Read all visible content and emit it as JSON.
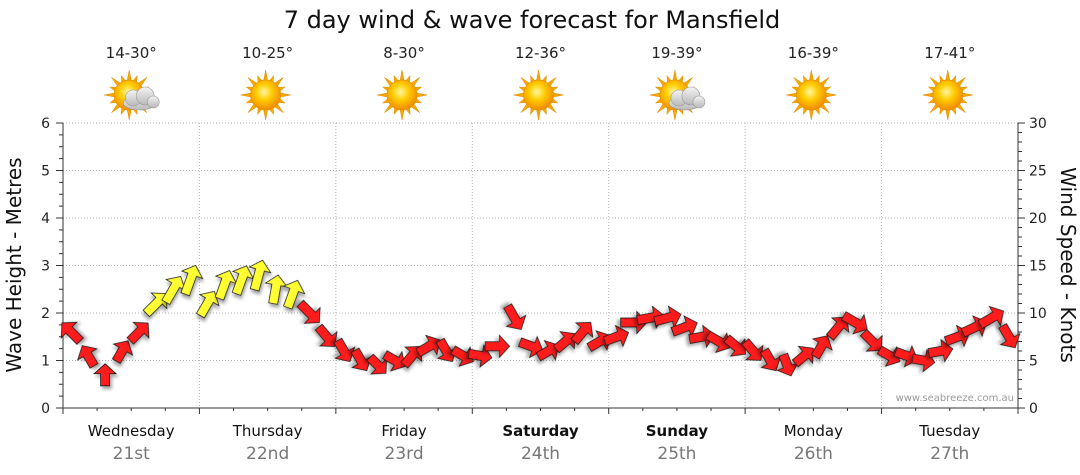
{
  "chart_data": {
    "type": "line",
    "title": "7 day wind & wave forecast for Mansfield",
    "ylabel_left": "Wave Height - Metres",
    "ylabel_right": "Wind Speed - Knots",
    "ylim_left": [
      0,
      6
    ],
    "ylim_right": [
      0,
      30
    ],
    "yticks_left": [
      "0",
      "1",
      "2",
      "3",
      "4",
      "5",
      "6"
    ],
    "yticks_right": [
      "0",
      "5",
      "10",
      "15",
      "20",
      "25",
      "30"
    ],
    "days": [
      {
        "name": "Wednesday",
        "date": "21st",
        "temp": "14-30°",
        "weather": "partly-cloudy-icon",
        "weekend": false
      },
      {
        "name": "Thursday",
        "date": "22nd",
        "temp": "10-25°",
        "weather": "sunny-icon",
        "weekend": false
      },
      {
        "name": "Friday",
        "date": "23rd",
        "temp": "8-30°",
        "weather": "sunny-icon",
        "weekend": false
      },
      {
        "name": "Saturday",
        "date": "24th",
        "temp": "12-36°",
        "weather": "sunny-icon",
        "weekend": true
      },
      {
        "name": "Sunday",
        "date": "25th",
        "temp": "19-39°",
        "weather": "partly-cloudy-icon",
        "weekend": true
      },
      {
        "name": "Monday",
        "date": "26th",
        "temp": "16-39°",
        "weather": "sunny-icon",
        "weekend": false
      },
      {
        "name": "Tuesday",
        "date": "27th",
        "temp": "17-41°",
        "weather": "sunny-icon",
        "weekend": false
      }
    ],
    "series": [
      {
        "name": "Wind Speed - Knots",
        "color_low": "#ff1a1a",
        "color_high": "#ffff33",
        "x_day": [
          0,
          0.125,
          0.25,
          0.375,
          0.5,
          0.625,
          0.75,
          0.875,
          1,
          1.125,
          1.25,
          1.375,
          1.5,
          1.625,
          1.75,
          1.875,
          2,
          2.125,
          2.25,
          2.375,
          2.5,
          2.625,
          2.75,
          2.875,
          3,
          3.125,
          3.25,
          3.375,
          3.5,
          3.625,
          3.75,
          3.875,
          4,
          4.125,
          4.25,
          4.375,
          4.5,
          4.625,
          4.75,
          4.875,
          5,
          5.125,
          5.25,
          5.375,
          5.5,
          5.625,
          5.75,
          5.875,
          6,
          6.125,
          6.25,
          6.375,
          6.5,
          6.625,
          6.75,
          6.875
        ],
        "wind_knots": [
          8.5,
          6,
          4.5,
          6,
          8,
          11,
          13,
          14,
          11,
          13,
          13,
          14,
          12,
          12,
          10,
          8,
          7,
          6,
          5,
          6,
          7,
          8,
          7,
          6,
          6,
          7,
          10,
          7,
          6,
          7,
          8,
          7,
          8,
          9,
          10,
          10,
          9,
          8,
          8,
          7,
          7,
          6,
          5,
          6,
          7,
          9,
          10,
          8,
          6,
          6,
          5,
          7,
          8,
          9,
          10,
          8
        ],
        "wave_m": [
          1.6,
          1.1,
          0.7,
          1.2,
          1.6,
          2.2,
          2.5,
          2.7,
          2.2,
          2.6,
          2.7,
          2.8,
          2.5,
          2.4,
          2.0,
          1.5,
          1.2,
          1.0,
          0.9,
          1.0,
          1.1,
          1.3,
          1.2,
          1.1,
          1.1,
          1.3,
          1.9,
          1.3,
          1.2,
          1.4,
          1.6,
          1.4,
          1.5,
          1.8,
          1.9,
          1.9,
          1.7,
          1.5,
          1.4,
          1.3,
          1.2,
          1.0,
          0.9,
          1.1,
          1.3,
          1.7,
          1.8,
          1.4,
          1.1,
          1.1,
          1.0,
          1.2,
          1.5,
          1.7,
          1.9,
          1.5
        ],
        "direction_deg": [
          135,
          150,
          180,
          210,
          225,
          225,
          210,
          200,
          210,
          200,
          200,
          195,
          190,
          200,
          315,
          320,
          330,
          330,
          315,
          300,
          220,
          240,
          330,
          300,
          280,
          270,
          330,
          290,
          240,
          230,
          220,
          240,
          250,
          270,
          260,
          255,
          250,
          260,
          300,
          310,
          320,
          330,
          340,
          230,
          210,
          220,
          300,
          315,
          300,
          290,
          280,
          260,
          250,
          245,
          240,
          330
        ]
      }
    ],
    "credit": "www.seabreeze.com.au"
  }
}
